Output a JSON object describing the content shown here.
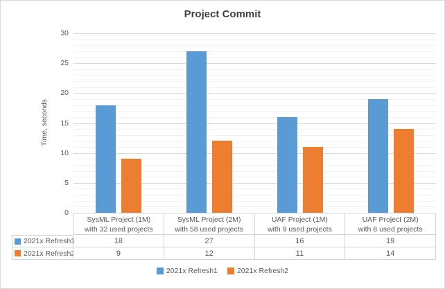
{
  "chart_data": {
    "type": "bar",
    "title": "Project Commit",
    "ylabel": "Time, seconds",
    "xlabel": "",
    "ylim": [
      0,
      30
    ],
    "ytick_step": 5,
    "minor_unit": 1,
    "grid": true,
    "legend_position": "bottom",
    "data_table_shown": true,
    "categories": [
      "SysML Project (1M) with 32 used projects",
      "SysML Project (2M) with 58 used projects",
      "UAF Project (1M) with 9 used projects",
      "UAF Project (2M) with 8 used projects"
    ],
    "categories_lines": [
      {
        "line1": "SysML Project (1M)",
        "line2": "with 32 used projects"
      },
      {
        "line1": "SysML Project (2M)",
        "line2": "with 58 used projects"
      },
      {
        "line1": "UAF Project (1M)",
        "line2": "with 9 used projects"
      },
      {
        "line1": "UAF Project (2M)",
        "line2": "with 8 used projects"
      }
    ],
    "series": [
      {
        "name": "2021x Refresh1",
        "color": "#5B9BD5",
        "values": [
          18,
          27,
          16,
          19
        ]
      },
      {
        "name": "2021x Refresh2",
        "color": "#ED7D31",
        "values": [
          9,
          12,
          11,
          14
        ]
      }
    ],
    "colors": {
      "grid_major": "#D9D9D9",
      "grid_minor": "#F2F2F2",
      "axis_text": "#595959",
      "title_text": "#404040",
      "table_border": "#CCD5DF",
      "chart_border": "#D9D9D9"
    }
  }
}
